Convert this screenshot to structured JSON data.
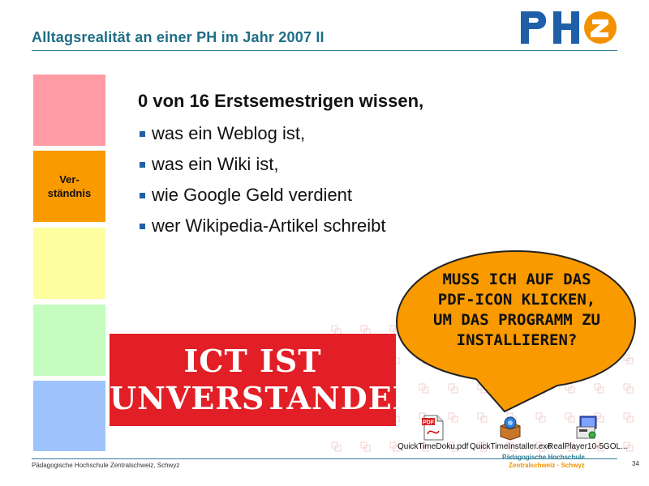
{
  "slide": {
    "title": "Alltagsrealität  an einer  PH im  Jahr 2007 II",
    "page_number": "34",
    "footer_institution": "Pädagogische Hochschule Zentralschweiz, Schwyz",
    "footer_brand_line1": "Pädagogische Hochschule",
    "footer_brand_line2": "Zentralschweiz · Schwyz",
    "logo_text": "PHZ"
  },
  "side_blocks": [
    {
      "label": "",
      "color": "#ff9ba4"
    },
    {
      "label": "Ver-\nständnis",
      "color": "#f99a00"
    },
    {
      "label": "",
      "color": "#fdfea0"
    },
    {
      "label": "",
      "color": "#c3fcbe"
    },
    {
      "label": "",
      "color": "#9ec3fc"
    }
  ],
  "content": {
    "lead": "0 von 16 Erstsemestrigen wissen,",
    "bullets": [
      "was ein Weblog ist,",
      "was ein Wiki ist,",
      "wie Google Geld verdient",
      "wer Wikipedia-Artikel schreibt"
    ]
  },
  "banner": {
    "line1": "ICT IST",
    "line2": "UNVERSTANDEN",
    "color": "#e21f26"
  },
  "speech_bubble": {
    "text": "Muss ich auf das PDF-Icon klicken, um das Programm zu installieren?",
    "fill": "#f99a00"
  },
  "files": [
    {
      "name": "QuickTimeDoku.pdf",
      "icon": "pdf-file-icon"
    },
    {
      "name": "QuickTimeInstaller.exe",
      "icon": "installer-icon"
    },
    {
      "name": "RealPlayer10-5GOL...",
      "icon": "setup-exe-icon"
    }
  ],
  "colors": {
    "title": "#1f6e86",
    "rule": "#2d7d95",
    "bullet": "#1f5fa8",
    "logo_blue": "#1f5fa8",
    "logo_orange": "#f39200"
  }
}
